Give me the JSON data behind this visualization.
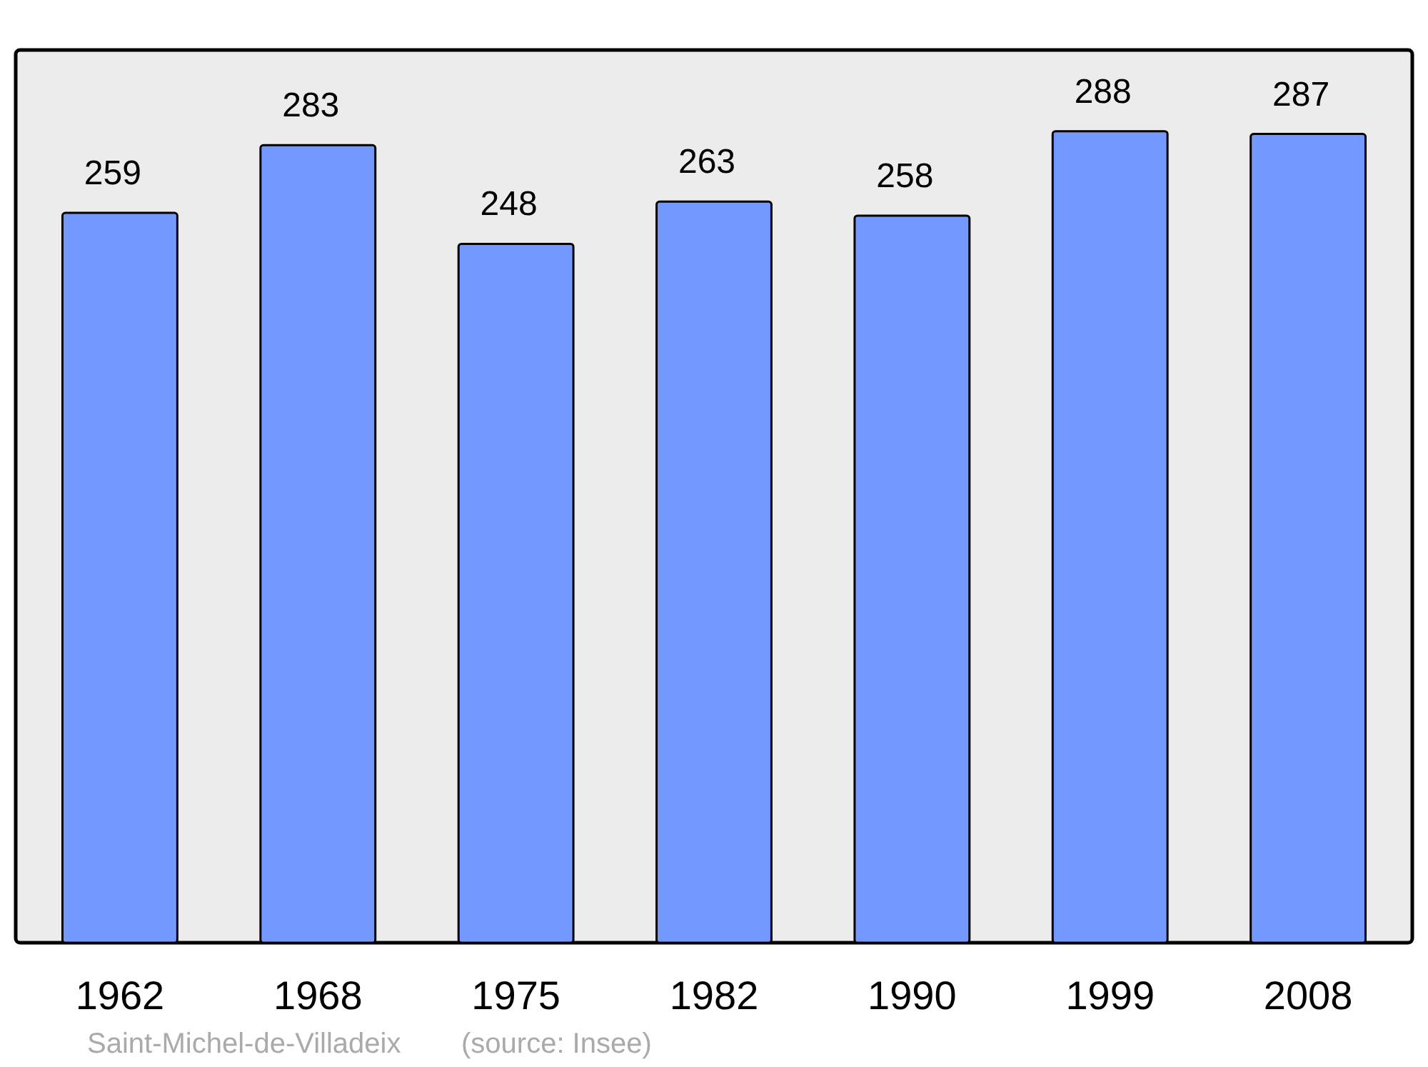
{
  "chart_data": {
    "type": "bar",
    "categories": [
      "1962",
      "1968",
      "1975",
      "1982",
      "1990",
      "1999",
      "2008"
    ],
    "values": [
      259,
      283,
      248,
      263,
      258,
      288,
      287
    ],
    "color": "#7399ff",
    "data_labels": true,
    "annotations": [
      "Saint-Michel-de-Villadeix",
      "(source: Insee)"
    ]
  }
}
